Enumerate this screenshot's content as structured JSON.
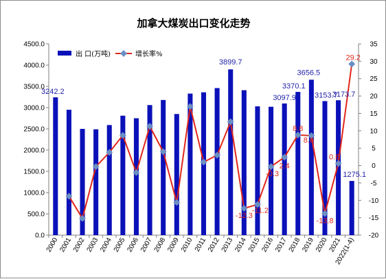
{
  "chart_data": {
    "type": "bar",
    "title": "加拿大煤炭出口变化走势",
    "categories": [
      "2000",
      "2001",
      "2002",
      "2003",
      "2004",
      "2005",
      "2006",
      "2007",
      "2008",
      "2009",
      "2010",
      "2011",
      "2012",
      "2013",
      "2014",
      "2015",
      "2016",
      "2017",
      "2018",
      "2019",
      "2020",
      "2021",
      "2022(1-4)"
    ],
    "series": [
      {
        "name": "出 口(万吨)",
        "type": "bar",
        "axis": "left",
        "color": "#0b11b8",
        "values": [
          3242.2,
          2950,
          2500,
          2490,
          2590,
          2810,
          2750,
          3060,
          3180,
          2850,
          3330,
          3360,
          3460,
          3899.7,
          3410,
          3030,
          3020,
          3097.9,
          3370.1,
          3656.5,
          3153.7,
          3173.7,
          1275.1
        ]
      },
      {
        "name": "增长率%",
        "type": "line",
        "axis": "right",
        "color": "#e0261b",
        "marker_color": "#6a8fc4",
        "values": [
          null,
          -8.8,
          -15.2,
          -0.3,
          3.8,
          8.7,
          -2.0,
          11.3,
          4.0,
          -10.6,
          17.0,
          1.0,
          3.0,
          12.6,
          -12.3,
          -11.2,
          -0.3,
          2.4,
          8.8,
          8.6,
          -13.8,
          0.6,
          29.2
        ]
      }
    ],
    "ylim_left": [
      0,
      4500
    ],
    "yticks_left": [
      "0.0",
      "500.0",
      "1000.0",
      "1500.0",
      "2000.0",
      "2500.0",
      "3000.0",
      "3500.0",
      "4000.0",
      "4500.0"
    ],
    "ylim_right": [
      -20,
      35
    ],
    "yticks_right": [
      "-20",
      "-15",
      "-10",
      "-5",
      "0",
      "5",
      "10",
      "15",
      "20",
      "25",
      "30",
      "35"
    ],
    "bar_labels": [
      {
        "index": 0,
        "text": "3242.2"
      },
      {
        "index": 13,
        "text": "3899.7"
      },
      {
        "index": 17,
        "text": "3097.9"
      },
      {
        "index": 18,
        "text": "3370.1"
      },
      {
        "index": 19,
        "text": "3656.5"
      },
      {
        "index": 20,
        "text": "3153.7"
      },
      {
        "index": 21,
        "text": "3173.7"
      },
      {
        "index": 22,
        "text": "1275.1"
      }
    ],
    "rate_labels": [
      {
        "index": 14,
        "text": "-12.3"
      },
      {
        "index": 15,
        "text": "-11.2"
      },
      {
        "index": 16,
        "text": "-0.3"
      },
      {
        "index": 17,
        "text": "2.4"
      },
      {
        "index": 18,
        "text": "8.8"
      },
      {
        "index": 19,
        "text": "8.6"
      },
      {
        "index": 20,
        "text": "-13.8"
      },
      {
        "index": 21,
        "text": "0.6"
      },
      {
        "index": 22,
        "text": "29.2"
      }
    ],
    "legend_position": "top-left",
    "grid": false
  }
}
